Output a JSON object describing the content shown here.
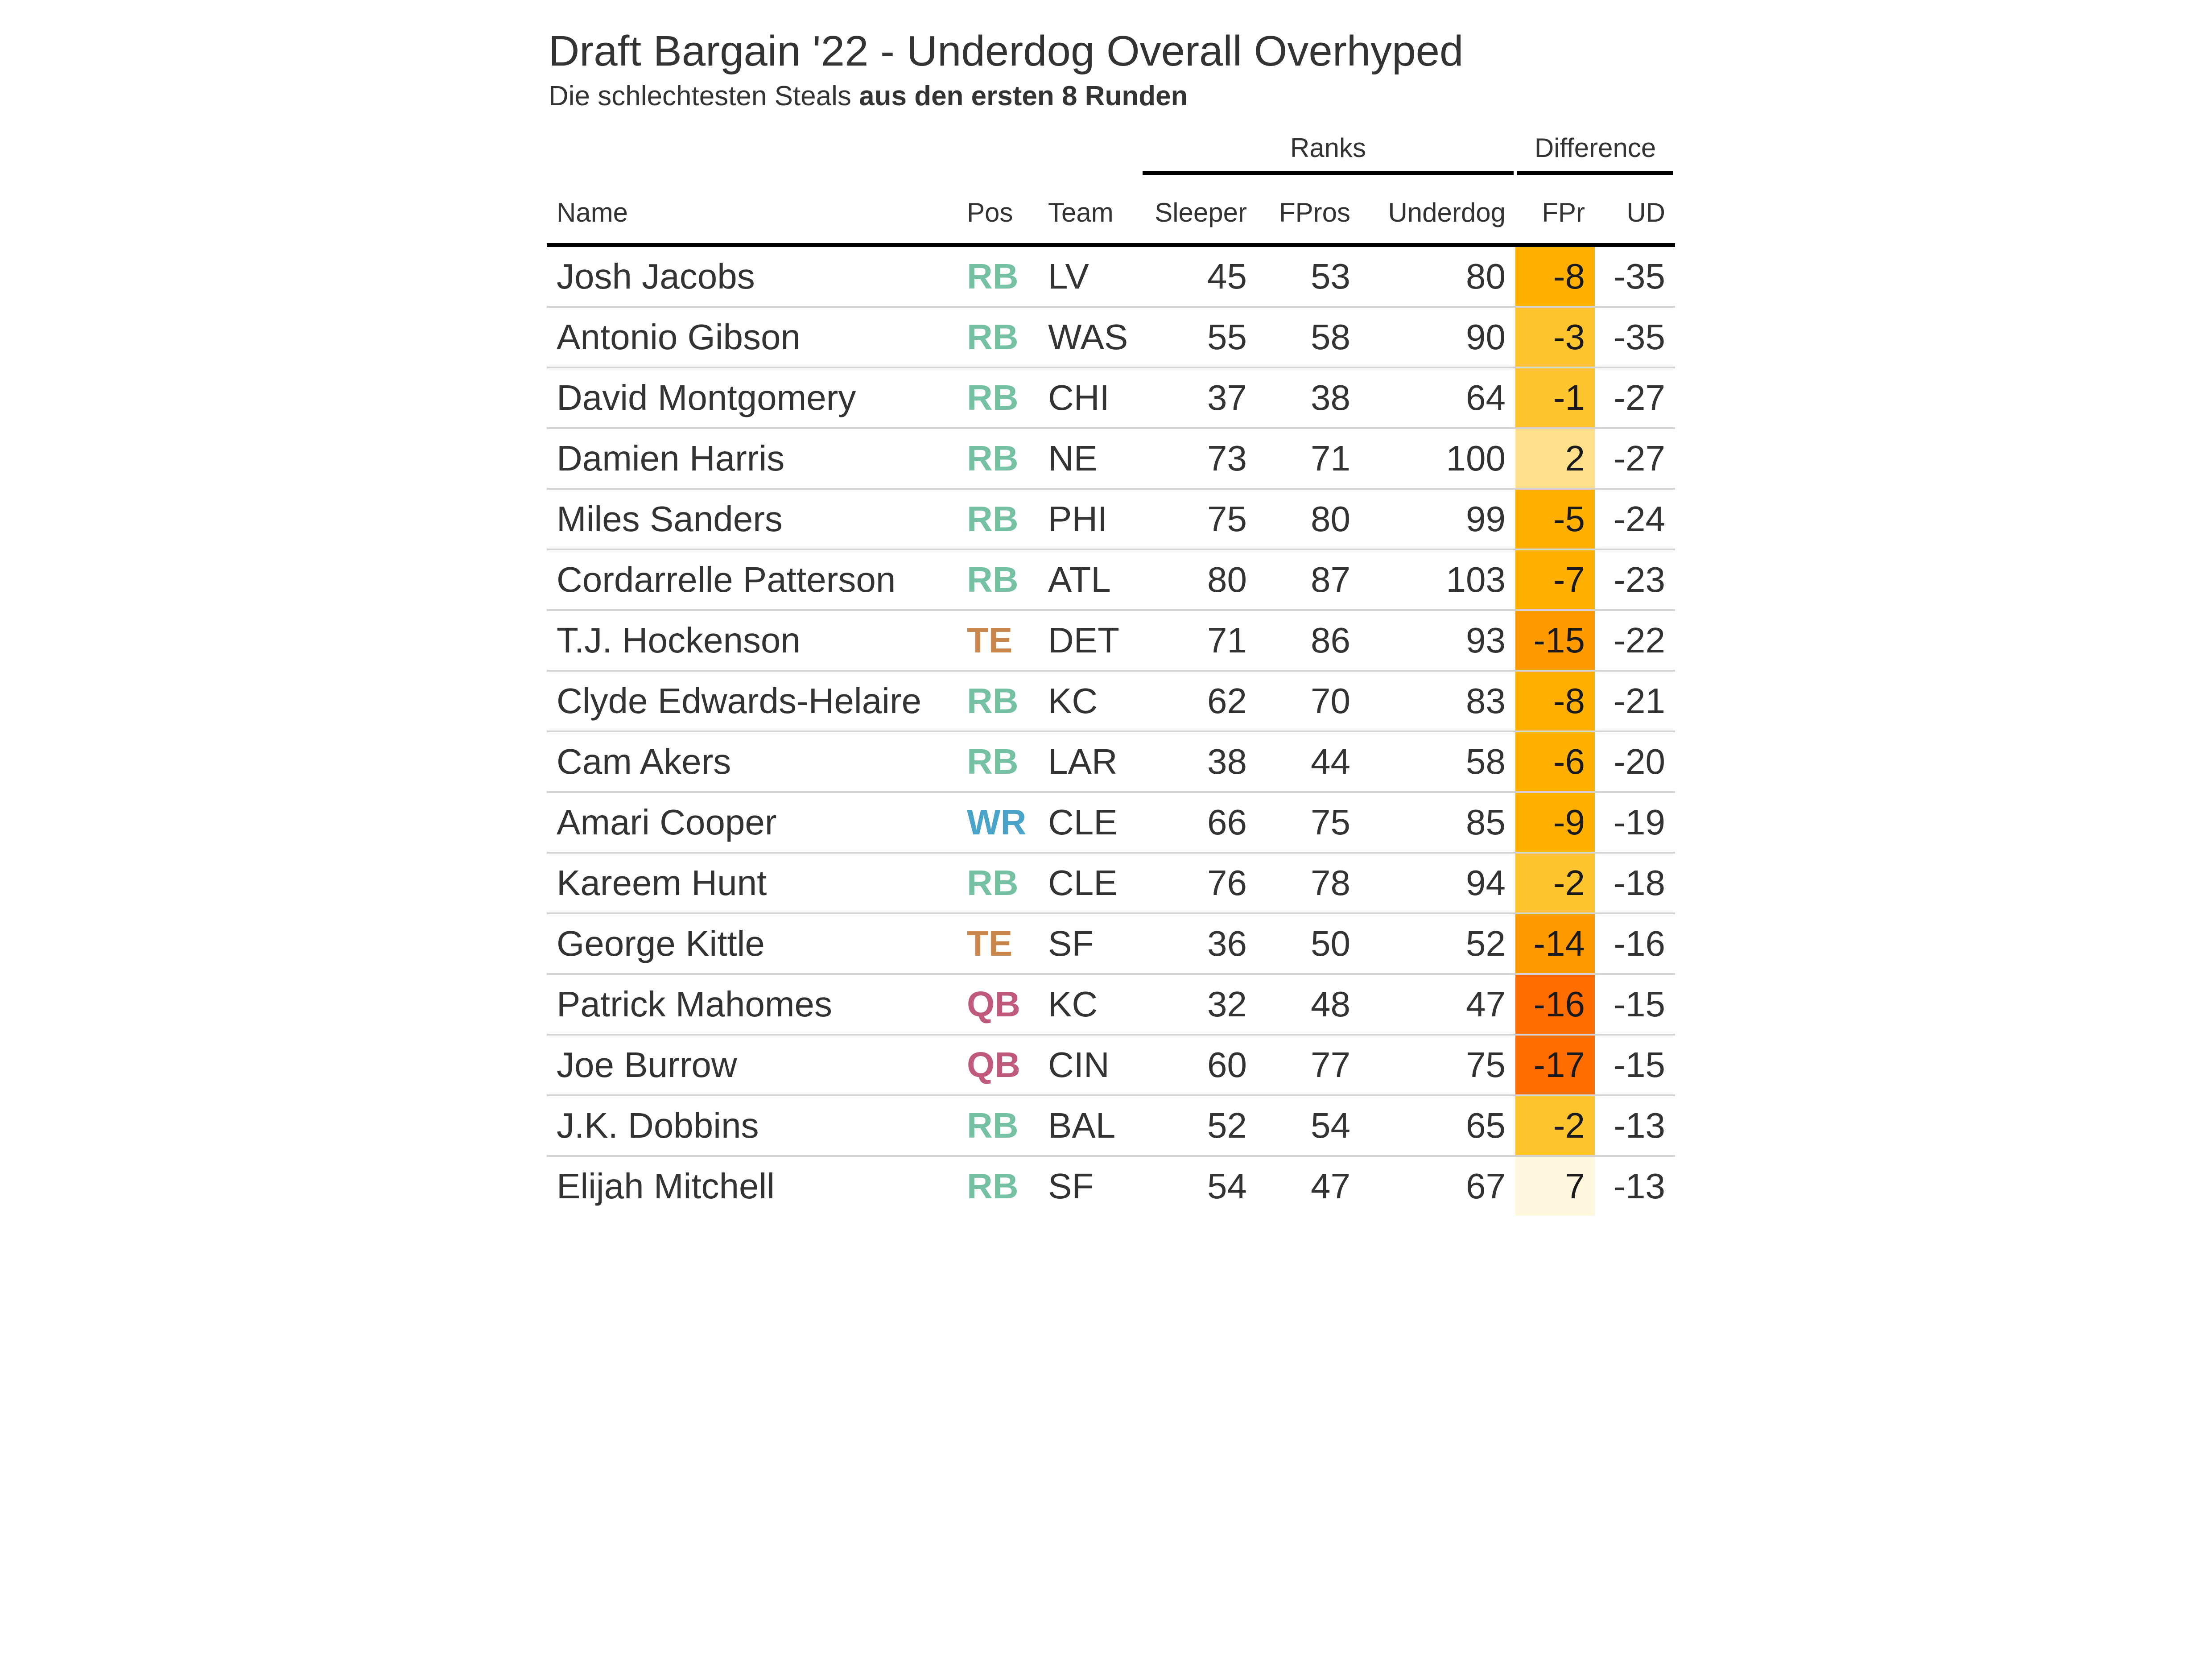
{
  "title": "Draft Bargain '22 - Underdog Overall Overhyped",
  "subtitle_plain": "Die schlechtesten Steals ",
  "subtitle_bold": "aus den ersten 8 Runden",
  "groups": {
    "ranks": "Ranks",
    "difference": "Difference"
  },
  "columns": {
    "name": "Name",
    "pos": "Pos",
    "team": "Team",
    "sleeper": "Sleeper",
    "fpros": "FPros",
    "underdog": "Underdog",
    "fpr": "FPr",
    "ud": "UD"
  },
  "colors": {
    "RB": "#76c1a2",
    "TE": "#c8864a",
    "WR": "#4aa3c9",
    "QB": "#c05a7d",
    "diff_scale": [
      "#fff6de",
      "#fee08b",
      "#fec52f",
      "#ffb000",
      "#ff9a00",
      "#ff6d00"
    ]
  },
  "chart_data": {
    "type": "table",
    "title": "Draft Bargain '22 - Underdog Overall Overhyped",
    "subtitle": "Die schlechtesten Steals aus den ersten 8 Runden",
    "rows": [
      {
        "name": "Josh Jacobs",
        "pos": "RB",
        "team": "LV",
        "sleeper": 45,
        "fpros": 53,
        "underdog": 80,
        "fpr": -8,
        "ud": -35
      },
      {
        "name": "Antonio Gibson",
        "pos": "RB",
        "team": "WAS",
        "sleeper": 55,
        "fpros": 58,
        "underdog": 90,
        "fpr": -3,
        "ud": -35
      },
      {
        "name": "David Montgomery",
        "pos": "RB",
        "team": "CHI",
        "sleeper": 37,
        "fpros": 38,
        "underdog": 64,
        "fpr": -1,
        "ud": -27
      },
      {
        "name": "Damien Harris",
        "pos": "RB",
        "team": "NE",
        "sleeper": 73,
        "fpros": 71,
        "underdog": 100,
        "fpr": 2,
        "ud": -27
      },
      {
        "name": "Miles Sanders",
        "pos": "RB",
        "team": "PHI",
        "sleeper": 75,
        "fpros": 80,
        "underdog": 99,
        "fpr": -5,
        "ud": -24
      },
      {
        "name": "Cordarrelle Patterson",
        "pos": "RB",
        "team": "ATL",
        "sleeper": 80,
        "fpros": 87,
        "underdog": 103,
        "fpr": -7,
        "ud": -23
      },
      {
        "name": "T.J. Hockenson",
        "pos": "TE",
        "team": "DET",
        "sleeper": 71,
        "fpros": 86,
        "underdog": 93,
        "fpr": -15,
        "ud": -22
      },
      {
        "name": "Clyde Edwards-Helaire",
        "pos": "RB",
        "team": "KC",
        "sleeper": 62,
        "fpros": 70,
        "underdog": 83,
        "fpr": -8,
        "ud": -21
      },
      {
        "name": "Cam Akers",
        "pos": "RB",
        "team": "LAR",
        "sleeper": 38,
        "fpros": 44,
        "underdog": 58,
        "fpr": -6,
        "ud": -20
      },
      {
        "name": "Amari Cooper",
        "pos": "WR",
        "team": "CLE",
        "sleeper": 66,
        "fpros": 75,
        "underdog": 85,
        "fpr": -9,
        "ud": -19
      },
      {
        "name": "Kareem Hunt",
        "pos": "RB",
        "team": "CLE",
        "sleeper": 76,
        "fpros": 78,
        "underdog": 94,
        "fpr": -2,
        "ud": -18
      },
      {
        "name": "George Kittle",
        "pos": "TE",
        "team": "SF",
        "sleeper": 36,
        "fpros": 50,
        "underdog": 52,
        "fpr": -14,
        "ud": -16
      },
      {
        "name": "Patrick Mahomes",
        "pos": "QB",
        "team": "KC",
        "sleeper": 32,
        "fpros": 48,
        "underdog": 47,
        "fpr": -16,
        "ud": -15
      },
      {
        "name": "Joe Burrow",
        "pos": "QB",
        "team": "CIN",
        "sleeper": 60,
        "fpros": 77,
        "underdog": 75,
        "fpr": -17,
        "ud": -15
      },
      {
        "name": "J.K. Dobbins",
        "pos": "RB",
        "team": "BAL",
        "sleeper": 52,
        "fpros": 54,
        "underdog": 65,
        "fpr": -2,
        "ud": -13
      },
      {
        "name": "Elijah Mitchell",
        "pos": "RB",
        "team": "SF",
        "sleeper": 54,
        "fpros": 47,
        "underdog": 67,
        "fpr": 7,
        "ud": -13
      }
    ]
  }
}
